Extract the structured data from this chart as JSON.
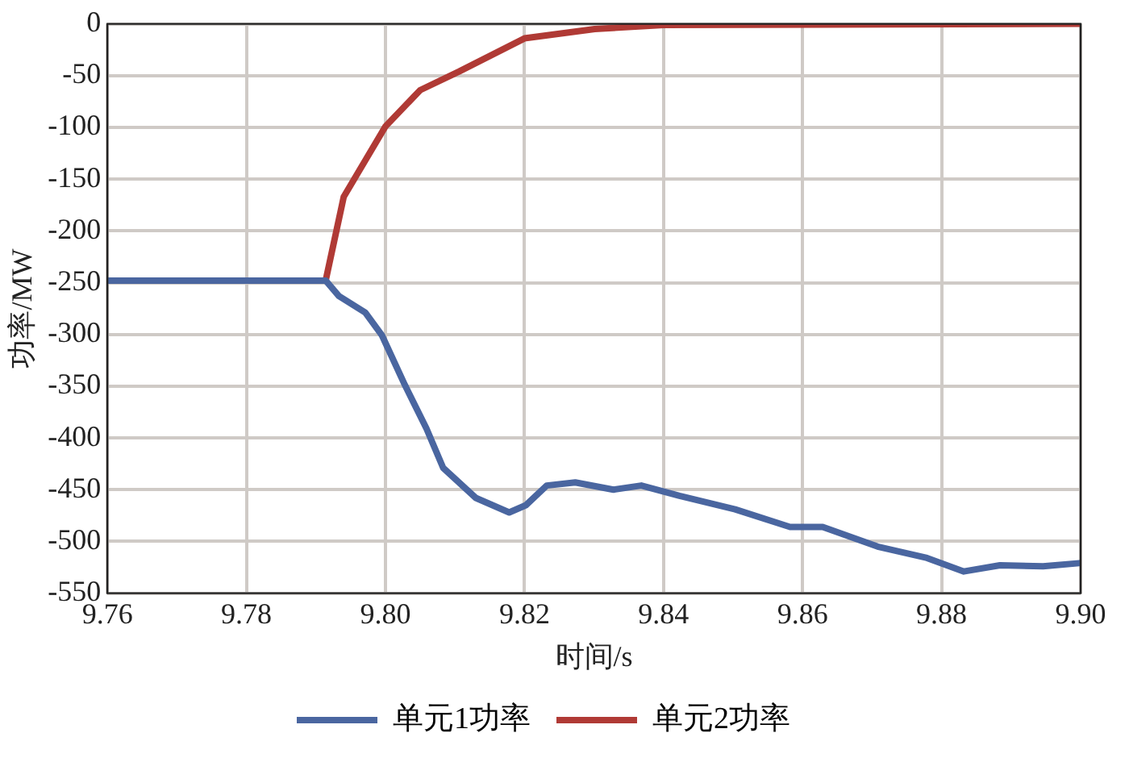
{
  "chart_data": {
    "type": "line",
    "xlabel": "时间/s",
    "ylabel": "功率/MW",
    "xlim": [
      9.76,
      9.9
    ],
    "xticks": [
      {
        "value": 9.76,
        "label": "9.76"
      },
      {
        "value": 9.78,
        "label": "9.78"
      },
      {
        "value": 9.8,
        "label": "9.80"
      },
      {
        "value": 9.82,
        "label": "9.82"
      },
      {
        "value": 9.84,
        "label": "9.84"
      },
      {
        "value": 9.86,
        "label": "9.86"
      },
      {
        "value": 9.88,
        "label": "9.88"
      },
      {
        "value": 9.9,
        "label": "9.90"
      }
    ],
    "ylim": [
      -550,
      0
    ],
    "yticks": [
      -550,
      -500,
      -450,
      -400,
      -350,
      -300,
      -250,
      -200,
      -150,
      -100,
      -50,
      0
    ],
    "grid": true,
    "legend": "bottom",
    "marker": "none",
    "line_style": "solid",
    "series": [
      {
        "name": "单元1功率",
        "color": "#4a66a0",
        "x": [
          9.76,
          9.7914,
          9.7933,
          9.7971,
          9.7995,
          9.8028,
          9.8059,
          9.8083,
          9.813,
          9.8178,
          9.8202,
          9.8232,
          9.8273,
          9.8328,
          9.8368,
          9.8423,
          9.8503,
          9.8582,
          9.8629,
          9.8708,
          9.8779,
          9.8832,
          9.8884,
          9.8946,
          9.8998
        ],
        "values": [
          -248,
          -248,
          -263,
          -279,
          -301,
          -349,
          -391,
          -429,
          -458,
          -472,
          -465,
          -446,
          -443,
          -450,
          -446,
          -456,
          -469,
          -486,
          -486,
          -505,
          -516,
          -529,
          -523,
          -524,
          -521
        ]
      },
      {
        "name": "单元2功率",
        "color": "#b03a35",
        "x": [
          9.76,
          9.7914,
          9.794,
          9.8,
          9.805,
          9.8106,
          9.82,
          9.8301,
          9.84,
          9.9
        ],
        "values": [
          -248,
          -248,
          -167,
          -99,
          -64,
          -46,
          -14,
          -5,
          -1,
          0
        ]
      }
    ]
  }
}
